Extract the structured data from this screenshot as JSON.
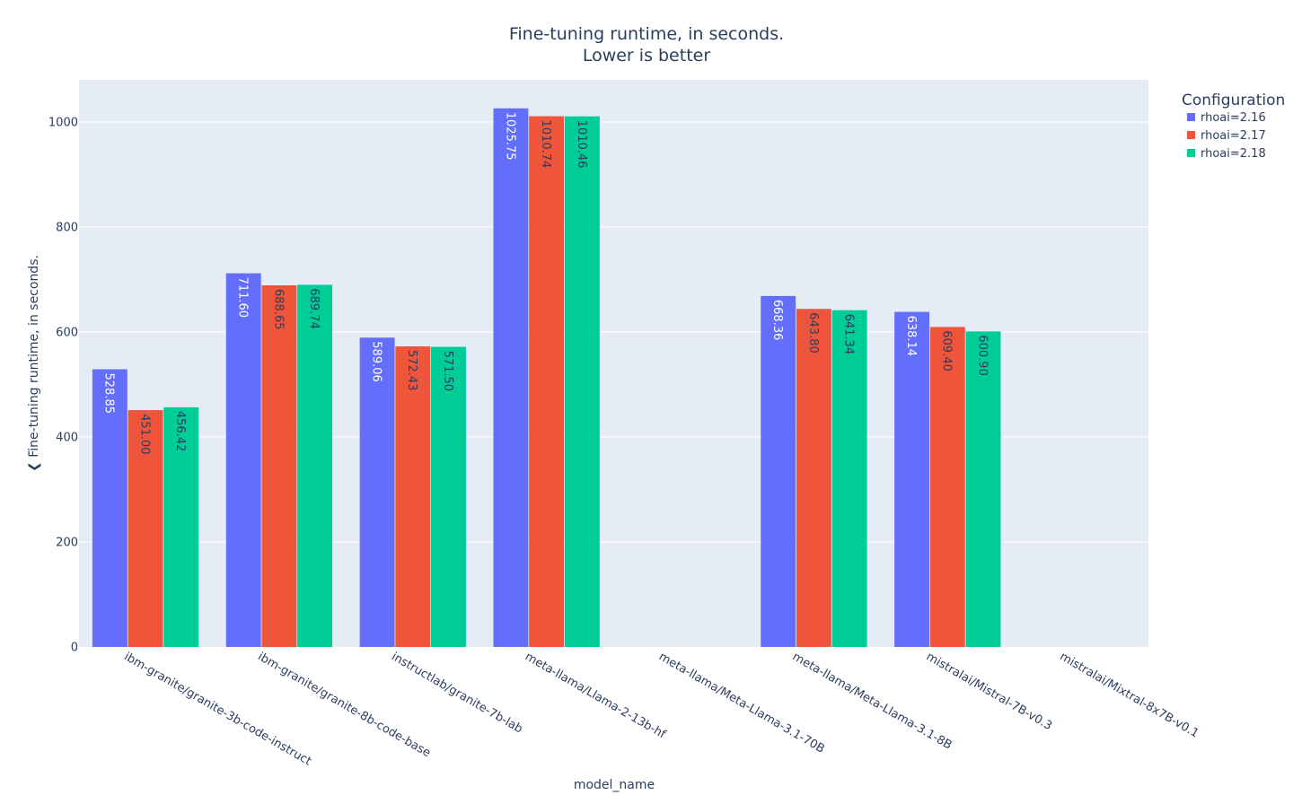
{
  "chart_data": {
    "type": "bar",
    "title": "Fine-tuning runtime, in seconds.",
    "subtitle": "Lower is better",
    "xlabel": "model_name",
    "ylabel": "❮ Fine-tuning runtime, in seconds.",
    "ylim": [
      0,
      1080
    ],
    "yticks": [
      0,
      200,
      400,
      600,
      800,
      1000
    ],
    "grid": true,
    "legend_title": "Configuration",
    "legend_position": "top-right",
    "categories": [
      "ibm-granite/granite-3b-code-instruct",
      "ibm-granite/granite-8b-code-base",
      "instructlab/granite-7b-lab",
      "meta-llama/Llama-2-13b-hf",
      "meta-llama/Meta-Llama-3.1-70B",
      "meta-llama/Meta-Llama-3.1-8B",
      "mistralai/Mistral-7B-v0.3",
      "mistralai/Mixtral-8x7B-v0.1"
    ],
    "series": [
      {
        "name": "rhoai=2.16",
        "color": "#636efa",
        "label_color": "#ffffff",
        "values": [
          528.85,
          711.6,
          589.06,
          1025.75,
          null,
          668.36,
          638.14,
          null
        ],
        "labels": [
          "528.85",
          "711.60",
          "589.06",
          "1025.75",
          "",
          "668.36",
          "638.14",
          ""
        ]
      },
      {
        "name": "rhoai=2.17",
        "color": "#ef553b",
        "label_color": "#2a3f5f",
        "values": [
          451.0,
          688.65,
          572.43,
          1010.74,
          null,
          643.8,
          609.4,
          null
        ],
        "labels": [
          "451.00",
          "688.65",
          "572.43",
          "1010.74",
          "",
          "643.80",
          "609.40",
          ""
        ]
      },
      {
        "name": "rhoai=2.18",
        "color": "#00cc96",
        "label_color": "#2a3f5f",
        "values": [
          456.42,
          689.74,
          571.5,
          1010.46,
          null,
          641.34,
          600.9,
          null
        ],
        "labels": [
          "456.42",
          "689.74",
          "571.50",
          "1010.46",
          "",
          "641.34",
          "600.90",
          ""
        ]
      }
    ],
    "plot_bg": "#e5ecf6",
    "text_color": "#2a3f5f"
  }
}
